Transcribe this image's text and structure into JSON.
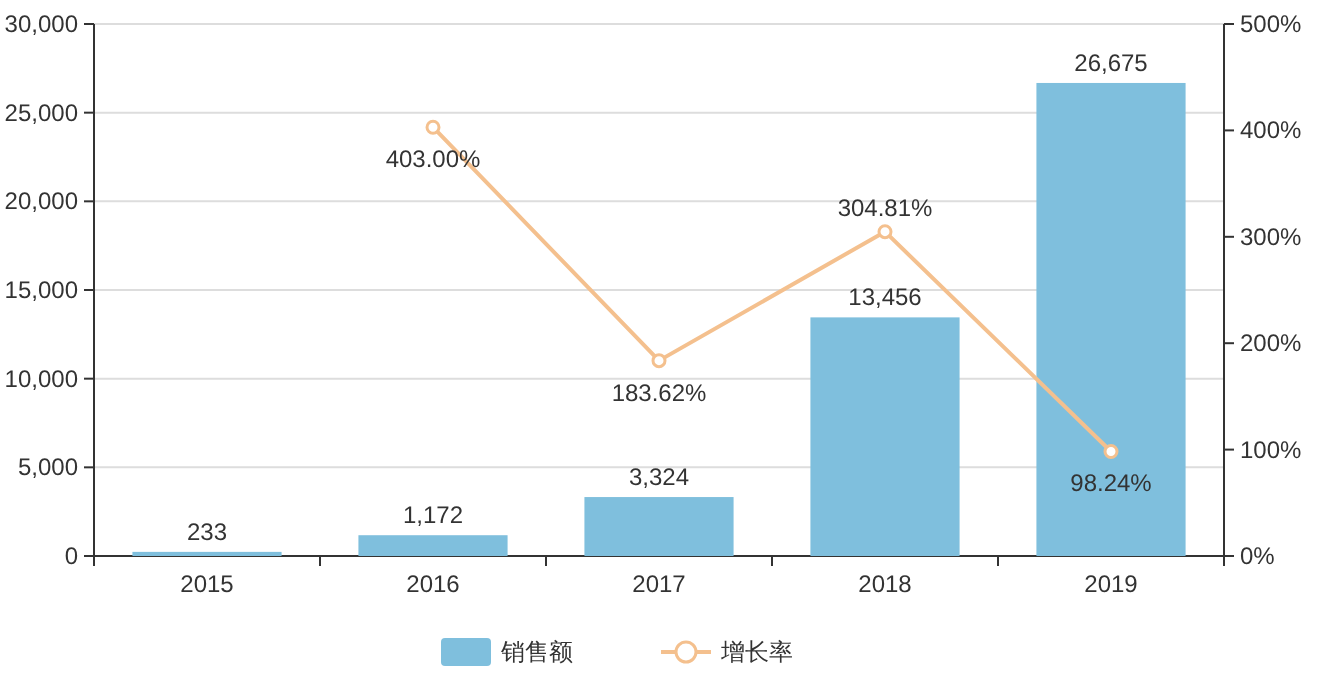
{
  "chart_data": {
    "type": "bar",
    "categories": [
      "2015",
      "2016",
      "2017",
      "2018",
      "2019"
    ],
    "series": [
      {
        "name": "销售额",
        "color": "#7fbfdd",
        "values": [
          233,
          1172,
          3324,
          13456,
          26675
        ],
        "value_labels": [
          "233",
          "1,172",
          "3,324",
          "13,456",
          "26,675"
        ]
      },
      {
        "name": "增长率",
        "type": "line",
        "axis": "y2",
        "color": "#f4c08e",
        "marker": "circle",
        "values": [
          null,
          403.0,
          183.62,
          304.81,
          98.24
        ],
        "value_labels": [
          null,
          "403.00%",
          "183.62%",
          "304.81%",
          "98.24%"
        ]
      }
    ],
    "ylim": [
      0,
      30000
    ],
    "yticks": [
      {
        "value": 0,
        "label": "0"
      },
      {
        "value": 5000,
        "label": "5,000"
      },
      {
        "value": 10000,
        "label": "10,000"
      },
      {
        "value": 15000,
        "label": "15,000"
      },
      {
        "value": 20000,
        "label": "20,000"
      },
      {
        "value": 25000,
        "label": "25,000"
      },
      {
        "value": 30000,
        "label": "30,000"
      }
    ],
    "y2lim": [
      0,
      500
    ],
    "y2ticks": [
      {
        "value": 0,
        "label": "0%"
      },
      {
        "value": 100,
        "label": "100%"
      },
      {
        "value": 200,
        "label": "200%"
      },
      {
        "value": 300,
        "label": "300%"
      },
      {
        "value": 400,
        "label": "400%"
      },
      {
        "value": 500,
        "label": "500%"
      }
    ],
    "grid": "y",
    "legend": "bottom"
  }
}
